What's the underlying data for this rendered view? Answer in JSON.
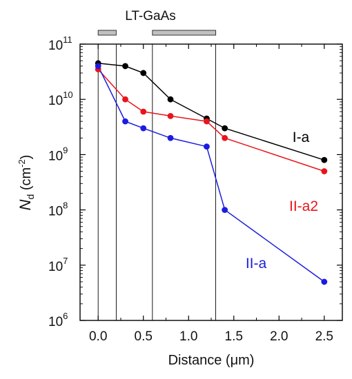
{
  "chart_data": {
    "type": "line",
    "x_axis": {
      "label": "Distance (μm)",
      "ticks": [
        "0.0",
        "0.5",
        "1.0",
        "1.5",
        "2.0",
        "2.5"
      ],
      "tick_values": [
        0,
        0.5,
        1.0,
        1.5,
        2.0,
        2.5
      ],
      "range": [
        -0.2,
        2.7
      ]
    },
    "y_axis": {
      "label_main": "N",
      "label_sub": "d",
      "label_unit": " (cm",
      "label_unit_exp": "-2",
      "label_unit_close": ")",
      "scale": "log",
      "range": [
        1000000,
        100000000000
      ],
      "tick_values": [
        1000000,
        10000000,
        100000000,
        1000000000,
        10000000000,
        100000000000
      ],
      "tick_base": "10",
      "tick_exponents": [
        "6",
        "7",
        "8",
        "9",
        "10",
        "11"
      ]
    },
    "grid": false,
    "band_label": "LT-GaAs",
    "bands": [
      {
        "x_start": 0,
        "x_end": 0.2
      },
      {
        "x_start": 0.6,
        "x_end": 1.3
      }
    ],
    "vertical_lines": [
      0,
      0.2,
      0.6,
      1.3
    ],
    "series": [
      {
        "name": "I-a",
        "color": "#000000",
        "x": [
          0,
          0.3,
          0.5,
          0.8,
          1.2,
          1.4,
          2.5
        ],
        "y": [
          45000000000,
          40000000000,
          30000000000,
          10000000000,
          4500000000,
          3000000000,
          800000000
        ]
      },
      {
        "name": "II-a2",
        "color": "#e8141c",
        "x": [
          0,
          0.3,
          0.5,
          0.8,
          1.2,
          1.4,
          2.5
        ],
        "y": [
          35000000000,
          10000000000,
          6000000000,
          5000000000,
          4000000000,
          2000000000,
          500000000
        ]
      },
      {
        "name": "II-a",
        "color": "#1c1ce0",
        "x": [
          0,
          0.3,
          0.5,
          0.8,
          1.2,
          1.4,
          2.5
        ],
        "y": [
          40000000000,
          4000000000,
          3000000000,
          2000000000,
          1400000000,
          100000000,
          5000000
        ]
      }
    ]
  }
}
